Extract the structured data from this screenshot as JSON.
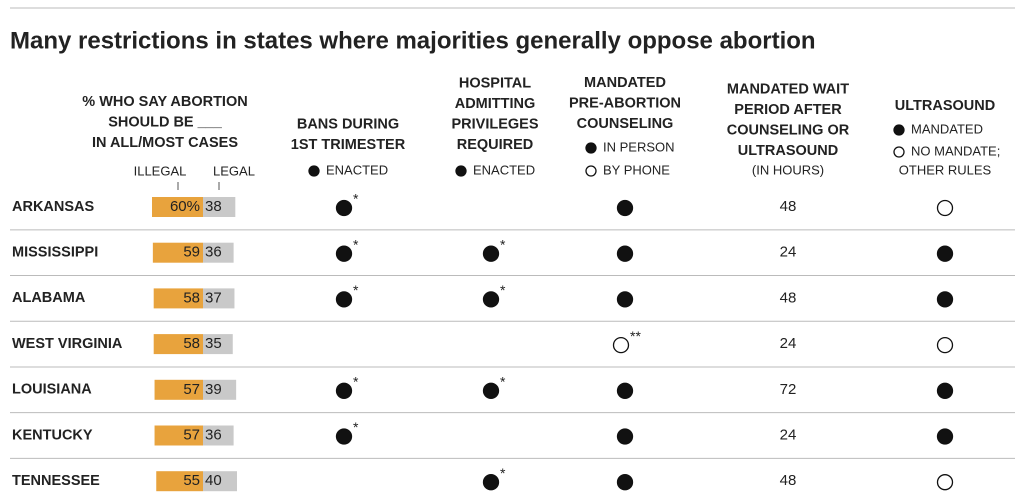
{
  "title": "Many restrictions in states where majorities generally oppose abortion",
  "columns": {
    "opinion": {
      "heading": [
        "% WHO SAY ABORTION",
        "SHOULD BE ___",
        "IN ALL/MOST CASES"
      ],
      "illegal": "ILLEGAL",
      "legal": "LEGAL",
      "illegal_color": "#e8a33d",
      "legal_color": "#c9c9c9"
    },
    "bans": {
      "heading": [
        "BANS DURING",
        "1ST TRIMESTER"
      ],
      "legend": [
        {
          "symbol": "filled",
          "label": "ENACTED"
        }
      ]
    },
    "hospital": {
      "heading": [
        "HOSPITAL",
        "ADMITTING",
        "PRIVILEGES",
        "REQUIRED"
      ],
      "legend": [
        {
          "symbol": "filled",
          "label": "ENACTED"
        }
      ]
    },
    "counseling": {
      "heading": [
        "MANDATED",
        "PRE-ABORTION",
        "COUNSELING"
      ],
      "legend": [
        {
          "symbol": "filled",
          "label": "IN PERSON"
        },
        {
          "symbol": "open",
          "label": "BY PHONE"
        }
      ]
    },
    "wait": {
      "heading": [
        "MANDATED WAIT",
        "PERIOD AFTER",
        "COUNSELING OR",
        "ULTRASOUND"
      ],
      "unit": "(IN HOURS)"
    },
    "ultrasound": {
      "heading": [
        "ULTRASOUND"
      ],
      "legend": [
        {
          "symbol": "filled",
          "label": "MANDATED"
        },
        {
          "symbol": "open",
          "label": "NO MANDATE;"
        }
      ],
      "legend_extra": "OTHER RULES"
    }
  },
  "rows": [
    {
      "state": "ARKANSAS",
      "illegal": 60,
      "illegal_label": "60%",
      "legal": 38,
      "bans": {
        "symbol": "filled",
        "note": "*"
      },
      "hospital": null,
      "counseling": {
        "symbol": "filled"
      },
      "wait": 48,
      "ultrasound": {
        "symbol": "open"
      }
    },
    {
      "state": "MISSISSIPPI",
      "illegal": 59,
      "illegal_label": "59",
      "legal": 36,
      "bans": {
        "symbol": "filled",
        "note": "*"
      },
      "hospital": {
        "symbol": "filled",
        "note": "*"
      },
      "counseling": {
        "symbol": "filled"
      },
      "wait": 24,
      "ultrasound": {
        "symbol": "filled"
      }
    },
    {
      "state": "ALABAMA",
      "illegal": 58,
      "illegal_label": "58",
      "legal": 37,
      "bans": {
        "symbol": "filled",
        "note": "*"
      },
      "hospital": {
        "symbol": "filled",
        "note": "*"
      },
      "counseling": {
        "symbol": "filled"
      },
      "wait": 48,
      "ultrasound": {
        "symbol": "filled"
      }
    },
    {
      "state": "WEST VIRGINIA",
      "illegal": 58,
      "illegal_label": "58",
      "legal": 35,
      "bans": null,
      "hospital": null,
      "counseling": {
        "symbol": "open",
        "note": "**"
      },
      "wait": 24,
      "ultrasound": {
        "symbol": "open"
      }
    },
    {
      "state": "LOUISIANA",
      "illegal": 57,
      "illegal_label": "57",
      "legal": 39,
      "bans": {
        "symbol": "filled",
        "note": "*"
      },
      "hospital": {
        "symbol": "filled",
        "note": "*"
      },
      "counseling": {
        "symbol": "filled"
      },
      "wait": 72,
      "ultrasound": {
        "symbol": "filled"
      }
    },
    {
      "state": "KENTUCKY",
      "illegal": 57,
      "illegal_label": "57",
      "legal": 36,
      "bans": {
        "symbol": "filled",
        "note": "*"
      },
      "hospital": null,
      "counseling": {
        "symbol": "filled"
      },
      "wait": 24,
      "ultrasound": {
        "symbol": "filled"
      }
    },
    {
      "state": "TENNESSEE",
      "illegal": 55,
      "illegal_label": "55",
      "legal": 40,
      "bans": null,
      "hospital": {
        "symbol": "filled",
        "note": "*"
      },
      "counseling": {
        "symbol": "filled"
      },
      "wait": 48,
      "ultrasound": {
        "symbol": "open"
      }
    }
  ]
}
